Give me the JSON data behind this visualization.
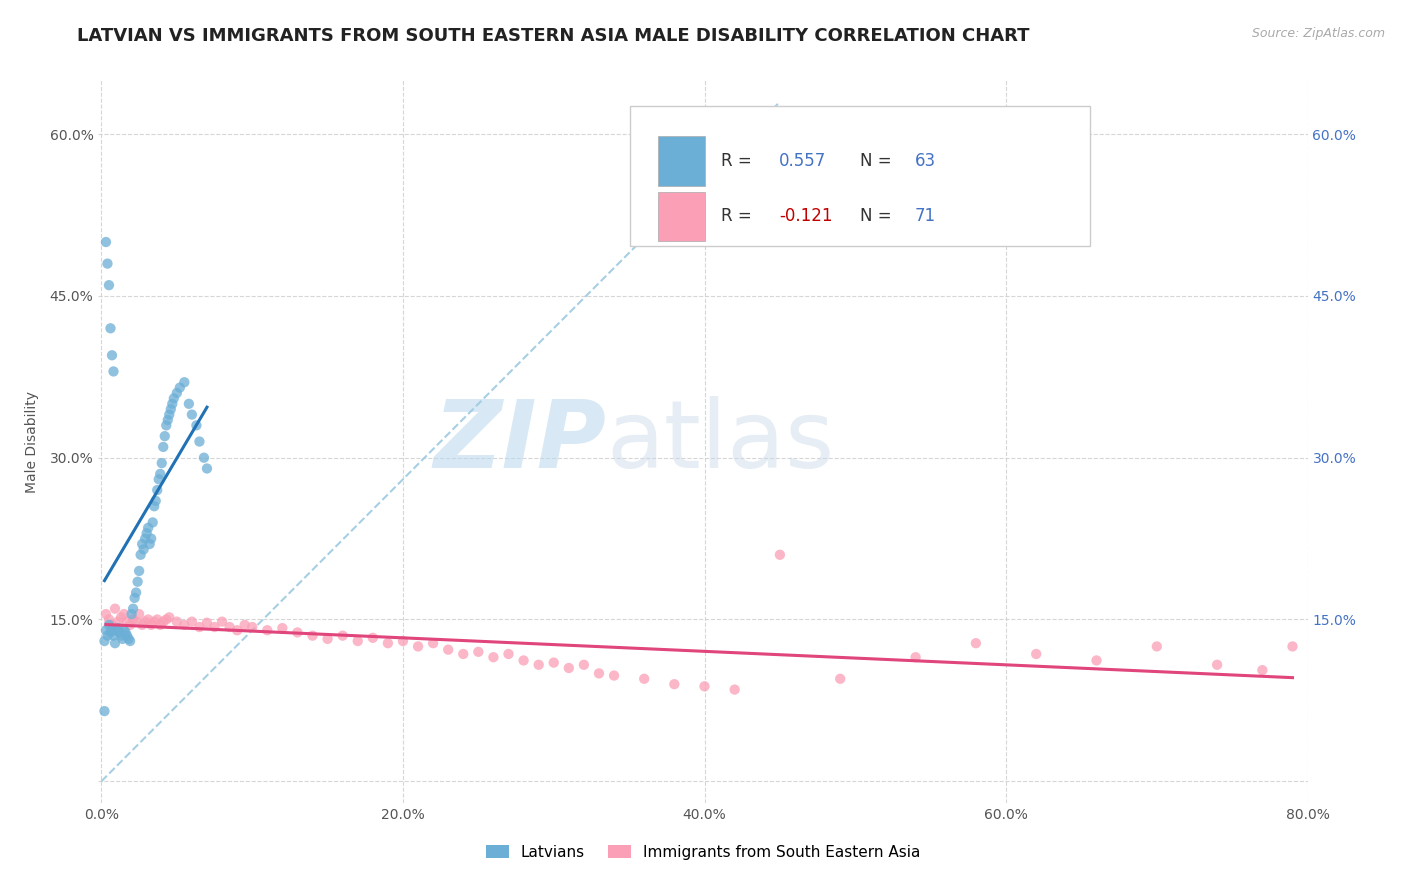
{
  "title": "LATVIAN VS IMMIGRANTS FROM SOUTH EASTERN ASIA MALE DISABILITY CORRELATION CHART",
  "source": "Source: ZipAtlas.com",
  "ylabel": "Male Disability",
  "xlim": [
    -0.002,
    0.8
  ],
  "ylim": [
    -0.02,
    0.65
  ],
  "x_ticks": [
    0.0,
    0.2,
    0.4,
    0.6,
    0.8
  ],
  "x_tick_labels": [
    "0.0%",
    "20.0%",
    "40.0%",
    "60.0%",
    "80.0%"
  ],
  "y_ticks_left": [
    0.0,
    0.15,
    0.3,
    0.45,
    0.6
  ],
  "y_tick_labels_left": [
    "",
    "15.0%",
    "30.0%",
    "45.0%",
    "60.0%"
  ],
  "y_ticks_right": [
    0.15,
    0.3,
    0.45,
    0.6
  ],
  "y_tick_labels_right": [
    "15.0%",
    "30.0%",
    "45.0%",
    "60.0%"
  ],
  "latvian_color": "#6baed6",
  "immigrant_color": "#fa9fb5",
  "latvian_line_color": "#2171b5",
  "immigrant_line_color": "#e0457b",
  "dashed_line_color": "#9ecae1",
  "R_latvian": 0.557,
  "N_latvian": 63,
  "R_immigrant": -0.121,
  "N_immigrant": 71,
  "legend_label_1": "Latvians",
  "legend_label_2": "Immigrants from South Eastern Asia",
  "watermark_zip": "ZIP",
  "watermark_atlas": "atlas",
  "title_fontsize": 13,
  "axis_fontsize": 10,
  "tick_color": "#555555",
  "right_tick_color": "#4472c4",
  "latvian_scatter_x": [
    0.002,
    0.003,
    0.004,
    0.005,
    0.006,
    0.007,
    0.008,
    0.009,
    0.01,
    0.011,
    0.012,
    0.013,
    0.014,
    0.015,
    0.016,
    0.017,
    0.018,
    0.019,
    0.02,
    0.021,
    0.022,
    0.023,
    0.024,
    0.025,
    0.026,
    0.027,
    0.028,
    0.029,
    0.03,
    0.031,
    0.032,
    0.033,
    0.034,
    0.035,
    0.036,
    0.037,
    0.038,
    0.039,
    0.04,
    0.041,
    0.042,
    0.043,
    0.044,
    0.045,
    0.046,
    0.047,
    0.048,
    0.05,
    0.052,
    0.055,
    0.058,
    0.06,
    0.063,
    0.065,
    0.068,
    0.07,
    0.003,
    0.004,
    0.005,
    0.006,
    0.007,
    0.008,
    0.002
  ],
  "latvian_scatter_y": [
    0.13,
    0.14,
    0.135,
    0.145,
    0.138,
    0.14,
    0.135,
    0.128,
    0.14,
    0.142,
    0.138,
    0.135,
    0.132,
    0.14,
    0.138,
    0.135,
    0.132,
    0.13,
    0.155,
    0.16,
    0.17,
    0.175,
    0.185,
    0.195,
    0.21,
    0.22,
    0.215,
    0.225,
    0.23,
    0.235,
    0.22,
    0.225,
    0.24,
    0.255,
    0.26,
    0.27,
    0.28,
    0.285,
    0.295,
    0.31,
    0.32,
    0.33,
    0.335,
    0.34,
    0.345,
    0.35,
    0.355,
    0.36,
    0.365,
    0.37,
    0.35,
    0.34,
    0.33,
    0.315,
    0.3,
    0.29,
    0.5,
    0.48,
    0.46,
    0.42,
    0.395,
    0.38,
    0.065
  ],
  "immigrant_scatter_x": [
    0.003,
    0.005,
    0.007,
    0.009,
    0.011,
    0.013,
    0.015,
    0.017,
    0.019,
    0.021,
    0.023,
    0.025,
    0.027,
    0.029,
    0.031,
    0.033,
    0.035,
    0.037,
    0.039,
    0.041,
    0.043,
    0.045,
    0.05,
    0.055,
    0.06,
    0.065,
    0.07,
    0.075,
    0.08,
    0.085,
    0.09,
    0.095,
    0.1,
    0.11,
    0.12,
    0.13,
    0.14,
    0.15,
    0.16,
    0.17,
    0.18,
    0.19,
    0.2,
    0.21,
    0.22,
    0.23,
    0.24,
    0.25,
    0.26,
    0.27,
    0.28,
    0.29,
    0.3,
    0.31,
    0.32,
    0.33,
    0.34,
    0.36,
    0.38,
    0.4,
    0.42,
    0.45,
    0.49,
    0.54,
    0.58,
    0.62,
    0.66,
    0.7,
    0.74,
    0.77,
    0.79
  ],
  "immigrant_scatter_y": [
    0.155,
    0.15,
    0.145,
    0.16,
    0.148,
    0.152,
    0.155,
    0.148,
    0.145,
    0.15,
    0.148,
    0.155,
    0.145,
    0.148,
    0.15,
    0.145,
    0.148,
    0.15,
    0.145,
    0.148,
    0.15,
    0.152,
    0.148,
    0.145,
    0.148,
    0.143,
    0.147,
    0.143,
    0.148,
    0.143,
    0.14,
    0.145,
    0.143,
    0.14,
    0.142,
    0.138,
    0.135,
    0.132,
    0.135,
    0.13,
    0.133,
    0.128,
    0.13,
    0.125,
    0.128,
    0.122,
    0.118,
    0.12,
    0.115,
    0.118,
    0.112,
    0.108,
    0.11,
    0.105,
    0.108,
    0.1,
    0.098,
    0.095,
    0.09,
    0.088,
    0.085,
    0.21,
    0.095,
    0.115,
    0.128,
    0.118,
    0.112,
    0.125,
    0.108,
    0.103,
    0.125
  ]
}
